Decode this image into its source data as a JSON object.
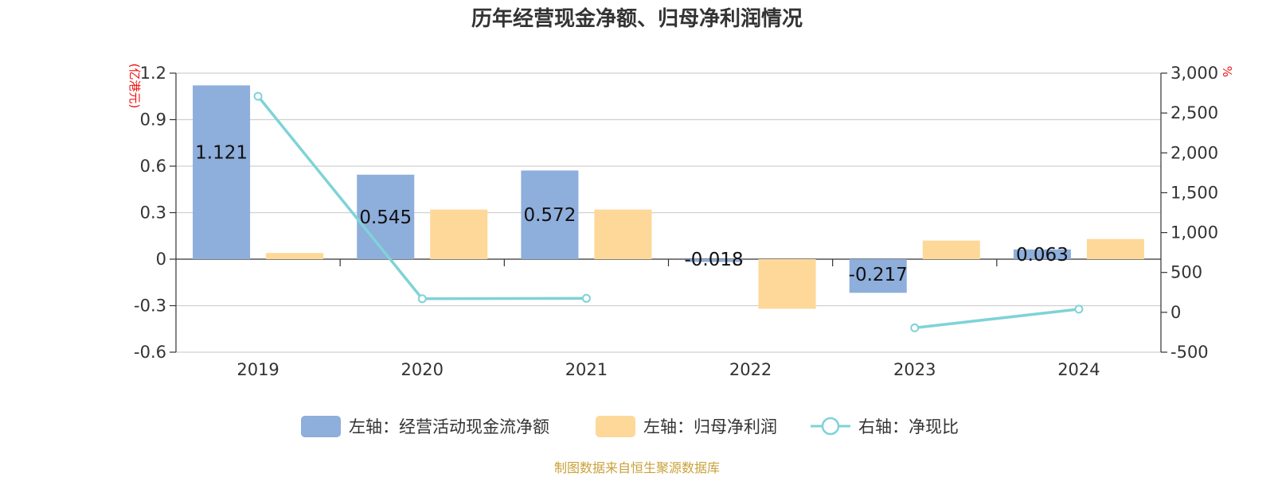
{
  "chart_data": {
    "type": "bar",
    "title": "历年经营现金净额、归母净利润情况",
    "categories": [
      "2019",
      "2020",
      "2021",
      "2022",
      "2023",
      "2024"
    ],
    "left_axis": {
      "unit": "(亿港元)",
      "ylim": [
        -0.6,
        1.2
      ],
      "ticks": [
        "-0.6",
        "-0.3",
        "0",
        "0.3",
        "0.6",
        "0.9",
        "1.2"
      ],
      "tick_values": [
        -0.6,
        -0.3,
        0,
        0.3,
        0.6,
        0.9,
        1.2
      ]
    },
    "right_axis": {
      "unit": "%",
      "ylim": [
        -500,
        3000
      ],
      "ticks": [
        "-500",
        "0",
        "500",
        "1,000",
        "1,500",
        "2,000",
        "2,500",
        "3,000"
      ],
      "tick_values": [
        -500,
        0,
        500,
        1000,
        1500,
        2000,
        2500,
        3000
      ]
    },
    "series": [
      {
        "name": "左轴：经营活动现金流净额",
        "axis": "left",
        "kind": "bar",
        "color": "#8eaedb",
        "values": [
          1.121,
          0.545,
          0.572,
          -0.018,
          -0.217,
          0.063
        ],
        "labels": [
          "1.121",
          "0.545",
          "0.572",
          "-0.018",
          "-0.217",
          "0.063"
        ]
      },
      {
        "name": "左轴：归母净利润",
        "axis": "left",
        "kind": "bar",
        "color": "#fdd898",
        "values": [
          0.04,
          0.32,
          0.32,
          -0.32,
          0.12,
          0.13
        ]
      },
      {
        "name": "右轴：净现比",
        "axis": "right",
        "kind": "line",
        "color": "#7fd3d6",
        "values": [
          2710,
          170,
          175,
          null,
          -195,
          40
        ]
      }
    ],
    "legend_position": "bottom",
    "grid": true
  },
  "footer": {
    "source": "制图数据来自恒生聚源数据库"
  }
}
